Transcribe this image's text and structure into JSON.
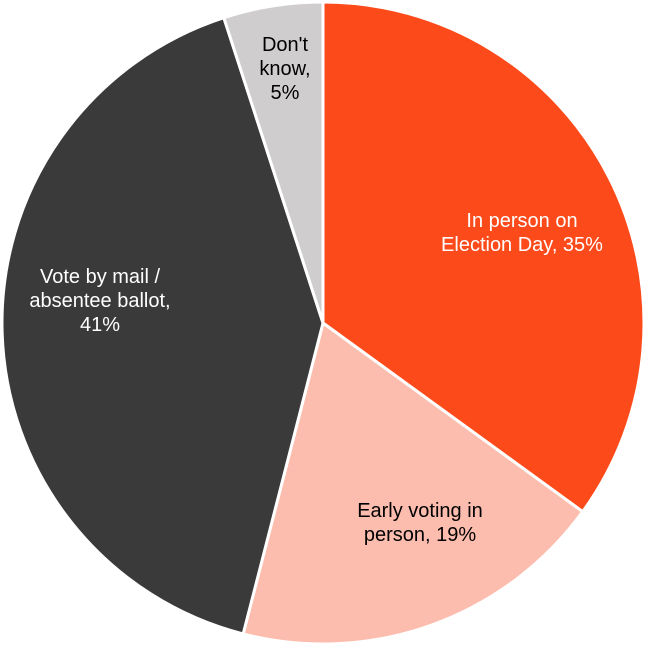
{
  "chart_data": {
    "type": "pie",
    "title": "",
    "start_angle_deg": 0,
    "direction": "clockwise",
    "slices": [
      {
        "label_lines": [
          "In person on",
          "Election Day, 35%"
        ],
        "category": "In person on Election Day",
        "value": 35,
        "color": "#FC4A1A",
        "label_color": "#ffffff"
      },
      {
        "label_lines": [
          "Early voting in",
          "person, 19%"
        ],
        "category": "Early voting in person",
        "value": 19,
        "color": "#FDBDAE",
        "label_color": "#000000"
      },
      {
        "label_lines": [
          "Vote by mail /",
          "absentee ballot,",
          "41%"
        ],
        "category": "Vote by mail / absentee ballot",
        "value": 41,
        "color": "#3A3A3A",
        "label_color": "#ffffff"
      },
      {
        "label_lines": [
          "Don't",
          "know,",
          "5%"
        ],
        "category": "Don't know",
        "value": 5,
        "color": "#D0CDCE",
        "label_color": "#000000"
      }
    ]
  }
}
